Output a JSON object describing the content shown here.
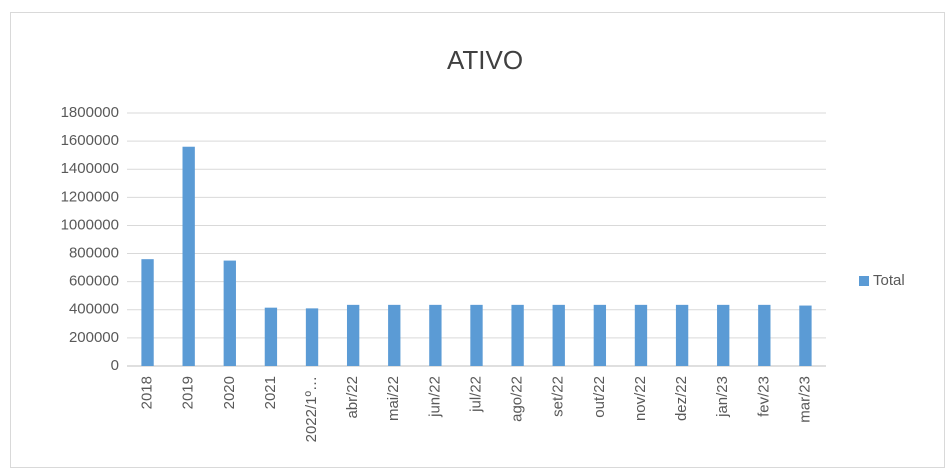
{
  "chart_data": {
    "type": "bar",
    "title": "ATIVO",
    "categories": [
      "2018",
      "2019",
      "2020",
      "2021",
      "2022/1º…",
      "abr/22",
      "mai/22",
      "jun/22",
      "jul/22",
      "ago/22",
      "set/22",
      "out/22",
      "nov/22",
      "dez/22",
      "jan/23",
      "fev/23",
      "mar/23"
    ],
    "series": [
      {
        "name": "Total",
        "color": "#5b9bd5",
        "values": [
          760000,
          1560000,
          750000,
          415000,
          410000,
          435000,
          435000,
          435000,
          435000,
          435000,
          435000,
          435000,
          435000,
          435000,
          435000,
          435000,
          430000
        ]
      }
    ],
    "ylim": [
      0,
      1800000
    ],
    "yticks": [
      0,
      200000,
      400000,
      600000,
      800000,
      1000000,
      1200000,
      1400000,
      1600000,
      1800000
    ],
    "grid": true,
    "legend": "right"
  }
}
